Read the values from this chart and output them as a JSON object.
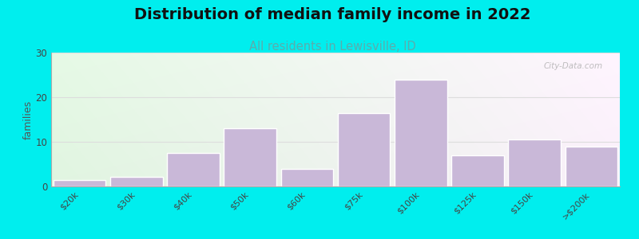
{
  "title": "Distribution of median family income in 2022",
  "subtitle": "All residents in Lewisville, ID",
  "categories": [
    "$20k",
    "$30k",
    "$40k",
    "$50k",
    "$60k",
    "$75k",
    "$100k",
    "$125k",
    "$150k",
    ">$200k"
  ],
  "values": [
    1.5,
    2.2,
    7.5,
    13.0,
    4.0,
    16.5,
    24.0,
    7.0,
    10.5,
    9.0
  ],
  "bar_color": "#c9b8d8",
  "bar_edge_color": "#ffffff",
  "background_color": "#00eeee",
  "ylabel": "families",
  "ylim": [
    0,
    30
  ],
  "yticks": [
    0,
    10,
    20,
    30
  ],
  "title_fontsize": 14,
  "subtitle_fontsize": 10.5,
  "subtitle_color": "#5aadad",
  "watermark": "City-Data.com"
}
